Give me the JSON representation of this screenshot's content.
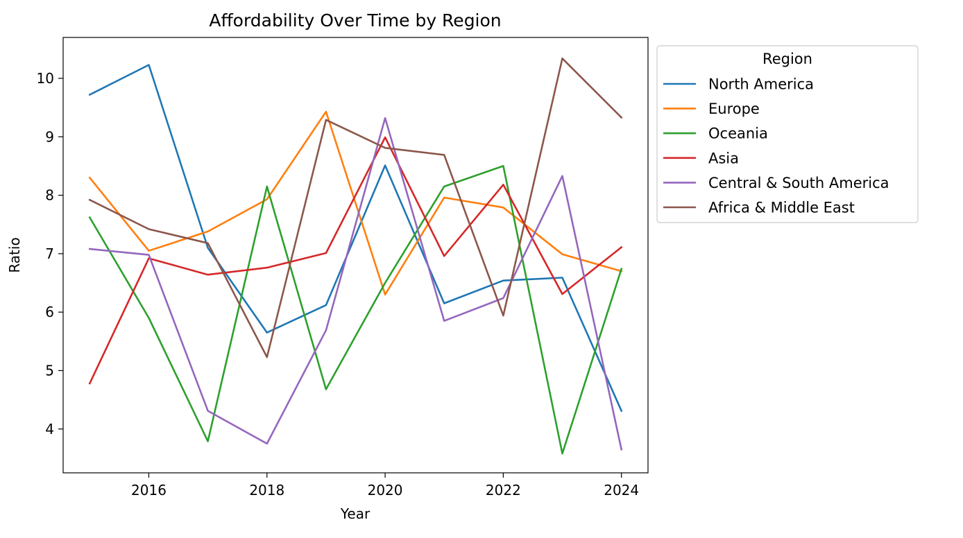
{
  "chart_data": {
    "type": "line",
    "title": "Affordability Over Time by Region",
    "xlabel": "Year",
    "ylabel": "Ratio",
    "x": [
      2015,
      2016,
      2017,
      2018,
      2019,
      2020,
      2021,
      2022,
      2023,
      2024
    ],
    "xlim": [
      2014.55,
      2024.45
    ],
    "ylim": [
      3.25,
      10.7
    ],
    "xticks": [
      2016,
      2018,
      2020,
      2022,
      2024
    ],
    "yticks": [
      4,
      5,
      6,
      7,
      8,
      9,
      10
    ],
    "grid": false,
    "legend": {
      "title": "Region",
      "placement": "outside-right-top"
    },
    "series": [
      {
        "name": "North America",
        "color": "#1f77b4",
        "values": [
          9.72,
          10.23,
          7.1,
          5.65,
          6.12,
          8.51,
          6.15,
          6.54,
          6.59,
          4.31
        ]
      },
      {
        "name": "Europe",
        "color": "#ff7f0e",
        "values": [
          8.3,
          7.05,
          7.38,
          7.93,
          9.43,
          6.3,
          7.96,
          7.79,
          6.99,
          6.7
        ]
      },
      {
        "name": "Oceania",
        "color": "#2ca02c",
        "values": [
          7.62,
          5.9,
          3.79,
          8.15,
          4.68,
          6.5,
          8.15,
          8.5,
          3.58,
          6.74
        ]
      },
      {
        "name": "Asia",
        "color": "#d62728",
        "values": [
          4.78,
          6.92,
          6.64,
          6.76,
          7.01,
          8.99,
          6.96,
          8.18,
          6.31,
          7.11
        ]
      },
      {
        "name": "Central & South America",
        "color": "#9467bd",
        "values": [
          7.08,
          6.98,
          4.31,
          3.75,
          5.69,
          9.32,
          5.85,
          6.24,
          8.33,
          3.65
        ]
      },
      {
        "name": "Africa & Middle East",
        "color": "#8c564b",
        "values": [
          7.92,
          7.42,
          7.18,
          5.23,
          9.29,
          8.81,
          8.69,
          5.94,
          10.34,
          9.33
        ]
      }
    ]
  }
}
